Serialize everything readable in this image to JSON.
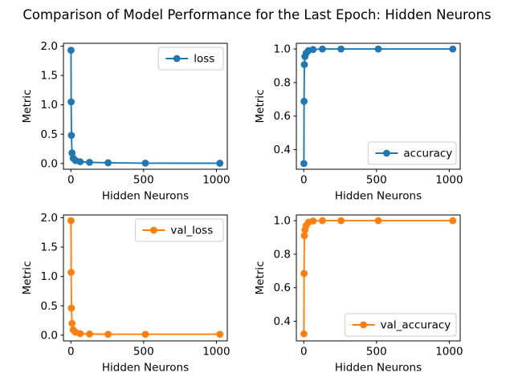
{
  "figure": {
    "title": "Comparison of Model Performance for the Last Epoch: Hidden Neurons",
    "background": "#ffffff",
    "text_color": "#000000",
    "spine_color": "#000000",
    "legend_border_color": "#cccccc",
    "legend_background": "#ffffff"
  },
  "chart_data": {
    "type": "line",
    "layout": {
      "rows": 2,
      "cols": 2,
      "grid": false,
      "marker": "circle",
      "line_style": "solid"
    },
    "suptitle": "Comparison of Model Performance for the Last Epoch: Hidden Neurons",
    "xlabel": "Hidden Neurons",
    "ylabel": "Metric",
    "x_values": [
      1,
      2,
      4,
      8,
      16,
      32,
      64,
      128,
      256,
      512,
      1024
    ],
    "xlim": [
      -51,
      1075
    ],
    "xticks": {
      "values": [
        0,
        500,
        1000
      ],
      "labels": [
        "0",
        "500",
        "1000"
      ]
    },
    "subplots": [
      {
        "name": "loss",
        "legend_label": "loss",
        "legend_loc": "upper-right",
        "color": "#1f77b4",
        "y": [
          1.93,
          1.05,
          0.48,
          0.18,
          0.09,
          0.05,
          0.03,
          0.02,
          0.012,
          0.006,
          0.004
        ],
        "ylim": [
          -0.098,
          2.048
        ],
        "yticks": {
          "values": [
            0.0,
            0.5,
            1.0,
            1.5,
            2.0
          ],
          "labels": [
            "0.0",
            "0.5",
            "1.0",
            "1.5",
            "2.0"
          ]
        }
      },
      {
        "name": "accuracy",
        "legend_label": "accuracy",
        "legend_loc": "lower-right",
        "color": "#1f77b4",
        "y": [
          0.317,
          0.688,
          0.907,
          0.955,
          0.975,
          0.99,
          0.997,
          1.0,
          1.0,
          1.0,
          1.0
        ],
        "ylim": [
          0.283,
          1.034
        ],
        "yticks": {
          "values": [
            0.4,
            0.6,
            0.8,
            1.0
          ],
          "labels": [
            "0.4",
            "0.6",
            "0.8",
            "1.0"
          ]
        }
      },
      {
        "name": "val_loss",
        "legend_label": "val_loss",
        "legend_loc": "upper-right",
        "color": "#ff7f0e",
        "y": [
          1.95,
          1.07,
          0.46,
          0.2,
          0.09,
          0.05,
          0.025,
          0.02,
          0.015,
          0.015,
          0.015
        ],
        "ylim": [
          -0.098,
          2.048
        ],
        "yticks": {
          "values": [
            0.0,
            0.5,
            1.0,
            1.5,
            2.0
          ],
          "labels": [
            "0.0",
            "0.5",
            "1.0",
            "1.5",
            "2.0"
          ]
        }
      },
      {
        "name": "val_accuracy",
        "legend_label": "val_accuracy",
        "legend_loc": "lower-right",
        "color": "#ff7f0e",
        "y": [
          0.325,
          0.685,
          0.91,
          0.945,
          0.97,
          0.99,
          0.998,
          1.0,
          1.0,
          1.0,
          1.0
        ],
        "ylim": [
          0.283,
          1.034
        ],
        "yticks": {
          "values": [
            0.4,
            0.6,
            0.8,
            1.0
          ],
          "labels": [
            "0.4",
            "0.6",
            "0.8",
            "1.0"
          ]
        }
      }
    ]
  }
}
